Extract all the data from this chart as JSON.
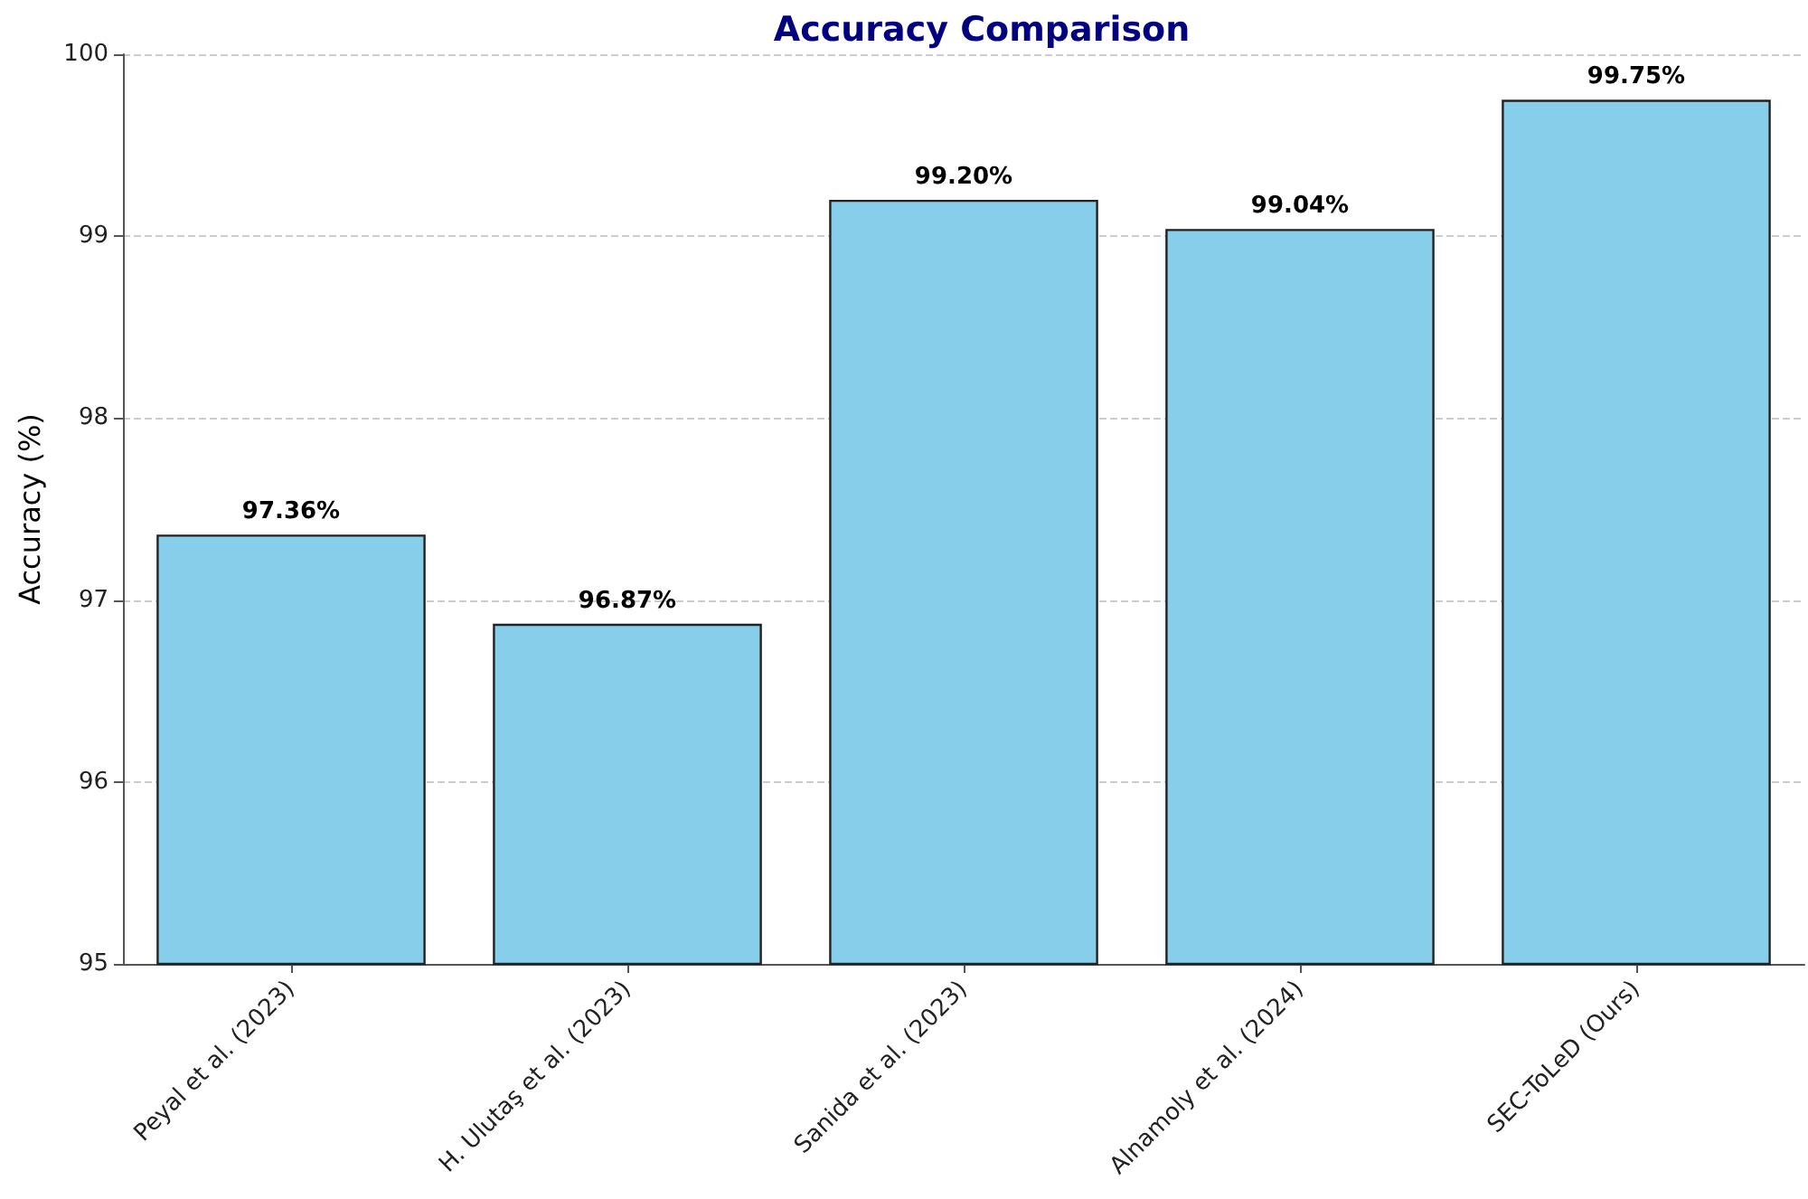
{
  "chart_data": {
    "type": "bar",
    "title": "Accuracy Comparison",
    "ylabel": "Accuracy (%)",
    "categories": [
      "Peyal et al. (2023)",
      "H. Ulutaş et al. (2023)",
      "Sanida et al. (2023)",
      "Alnamoly et al. (2024)",
      "SEC-ToLeD (Ours)"
    ],
    "values": [
      97.36,
      96.87,
      99.2,
      99.04,
      99.75
    ],
    "value_labels": [
      "97.36%",
      "96.87%",
      "99.20%",
      "99.04%",
      "99.75%"
    ],
    "color": "#87ceeb",
    "ylim": [
      95,
      100
    ],
    "yticks": [
      95,
      96,
      97,
      98,
      99,
      100
    ],
    "grid": "y"
  }
}
